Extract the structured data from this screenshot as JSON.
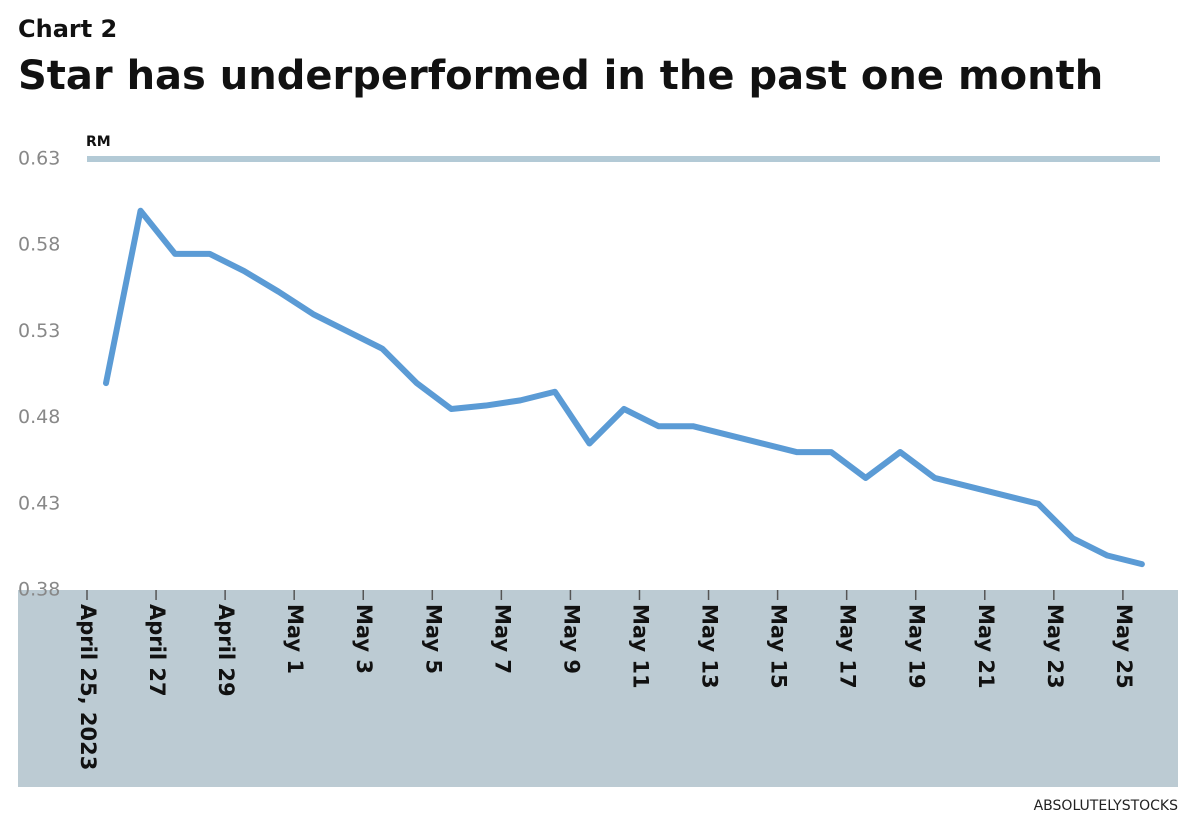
{
  "chart_data": {
    "type": "line",
    "label": "Chart 2",
    "title": "Star has underperformed in the past one month",
    "y_label": "RM",
    "source": "ABSOLUTELYSTOCKS",
    "categories": [
      "April 25, 2023",
      null,
      "April 27",
      null,
      "April 29",
      null,
      "May 1",
      null,
      "May 3",
      null,
      "May 5",
      null,
      "May 7",
      null,
      "May 9",
      null,
      "May 11",
      null,
      "May 13",
      null,
      "May 15",
      null,
      "May 17",
      null,
      "May 19",
      null,
      "May 21",
      null,
      "May 23",
      null,
      "May 25"
    ],
    "series": [
      {
        "name": "Star",
        "color": "#5b9bd5",
        "values": [
          0.5,
          0.6,
          0.575,
          0.575,
          0.565,
          0.553,
          0.54,
          0.53,
          0.52,
          0.5,
          0.485,
          0.487,
          0.49,
          0.495,
          0.465,
          0.485,
          0.475,
          0.475,
          0.47,
          0.465,
          0.46,
          0.46,
          0.445,
          0.46,
          0.445,
          0.44,
          0.435,
          0.43,
          0.41,
          0.4,
          0.395
        ]
      }
    ],
    "ylim": [
      0.38,
      0.63
    ],
    "yticks": [
      0.63,
      0.58,
      0.53,
      0.48,
      0.43,
      0.38
    ],
    "grid": false
  }
}
